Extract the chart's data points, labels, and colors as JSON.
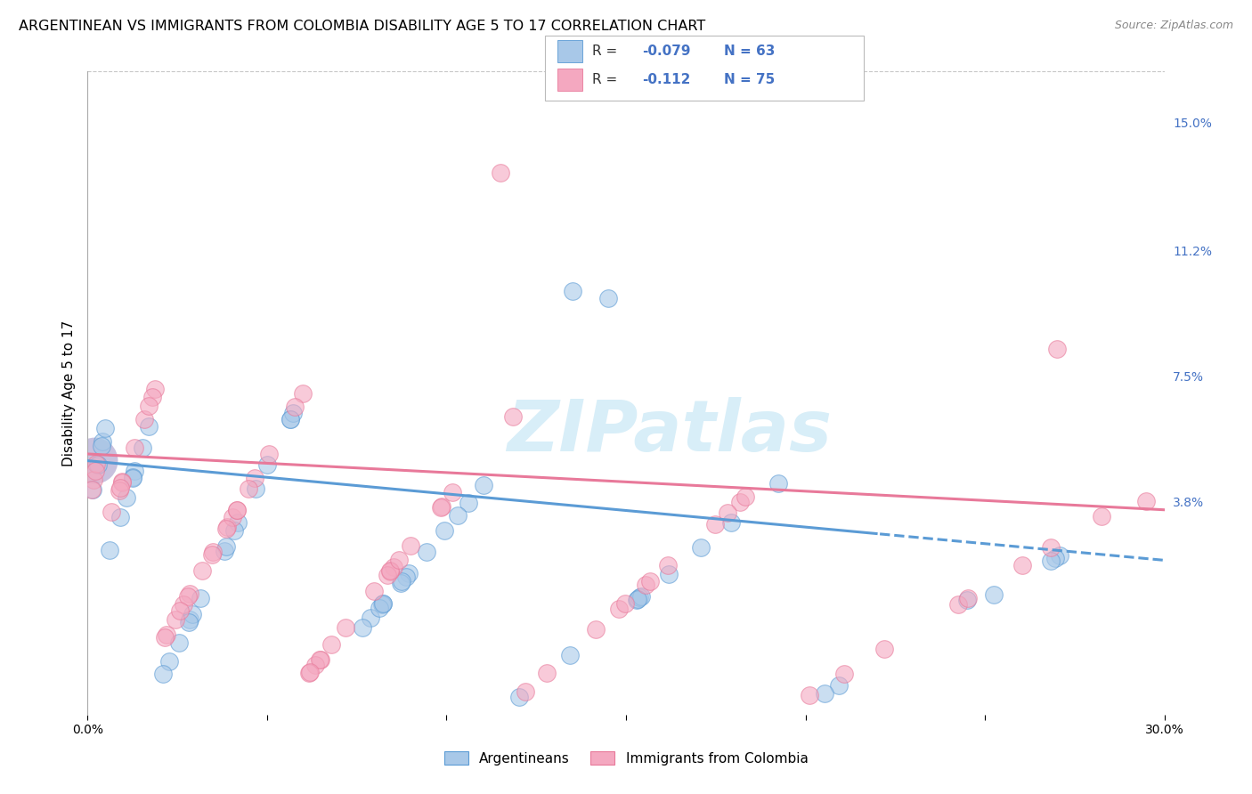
{
  "title": "ARGENTINEAN VS IMMIGRANTS FROM COLOMBIA DISABILITY AGE 5 TO 17 CORRELATION CHART",
  "source": "Source: ZipAtlas.com",
  "ylabel": "Disability Age 5 to 17",
  "xlim": [
    0.0,
    0.3
  ],
  "ylim": [
    -0.025,
    0.165
  ],
  "ytick_right_labels": [
    "15.0%",
    "11.2%",
    "7.5%",
    "3.8%"
  ],
  "ytick_right_values": [
    0.15,
    0.112,
    0.075,
    0.038
  ],
  "color_blue": "#A8C8E8",
  "color_pink": "#F4A8C0",
  "color_line_blue": "#5B9BD5",
  "color_line_pink": "#E8799A",
  "watermark_color": "#D8EEF8",
  "background_color": "#FFFFFF",
  "grid_color": "#C8C8C8",
  "title_fontsize": 11.5,
  "axis_label_fontsize": 11,
  "tick_fontsize": 10,
  "right_tick_color": "#4472C4"
}
